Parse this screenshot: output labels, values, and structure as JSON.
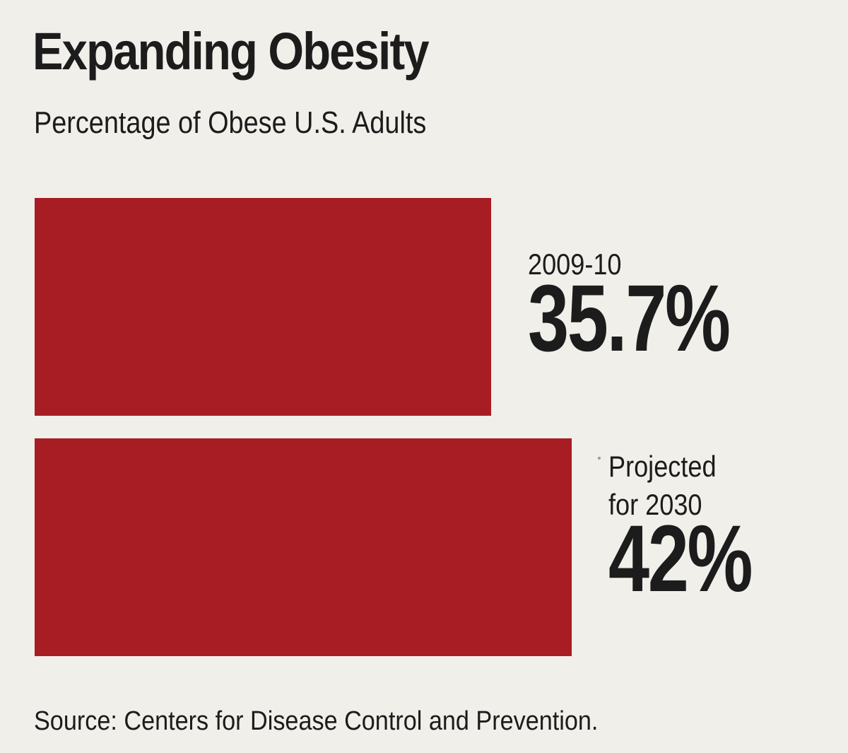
{
  "title": "Expanding Obesity",
  "subtitle": "Percentage of Obese U.S. Adults",
  "source": "Source: Centers for Disease Control and Prevention.",
  "colors": {
    "bar": "#a71d23",
    "text": "#1c1c1c",
    "background": "#f1efea"
  },
  "chart_data": {
    "type": "bar",
    "orientation": "horizontal",
    "title": "Expanding Obesity",
    "subtitle": "Percentage of Obese U.S. Adults",
    "categories": [
      "2009-10",
      "Projected for 2030"
    ],
    "category_label_lines": [
      [
        "2009-10"
      ],
      [
        "Projected",
        "for 2030"
      ]
    ],
    "values": [
      35.7,
      42
    ],
    "value_labels": [
      "35.7%",
      "42%"
    ],
    "unit": "%",
    "xlabel": "",
    "ylabel": "",
    "xlim": [
      0,
      45
    ],
    "grid": false,
    "legend": "none"
  }
}
